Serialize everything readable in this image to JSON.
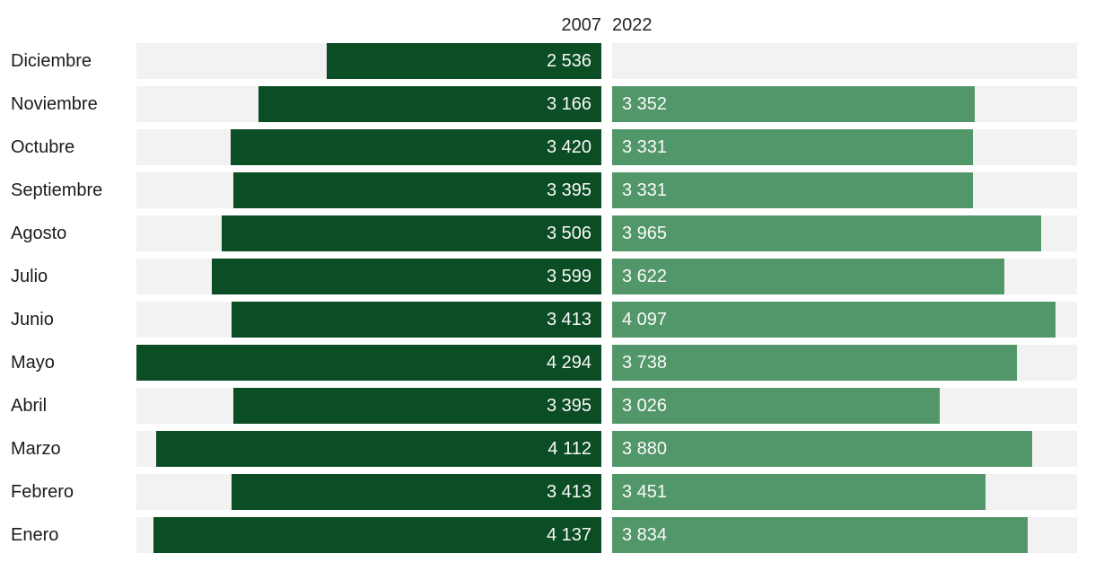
{
  "header": {
    "left_year": "2007",
    "right_year": "2022"
  },
  "colors": {
    "year2007_bar": "#0b4d24",
    "year2022_bar": "#529769",
    "track": "#f2f2f2",
    "month_text": "#1c1c1c",
    "value_text": "#fafafa"
  },
  "chart_data": {
    "type": "bar",
    "orientation": "horizontal-mirrored",
    "title": "",
    "categories": [
      "Diciembre",
      "Noviembre",
      "Octubre",
      "Septiembre",
      "Agosto",
      "Julio",
      "Junio",
      "Mayo",
      "Abril",
      "Marzo",
      "Febrero",
      "Enero"
    ],
    "series": [
      {
        "name": "2007",
        "side": "left",
        "values": [
          2536,
          3166,
          3420,
          3395,
          3506,
          3599,
          3413,
          4294,
          3395,
          4112,
          3413,
          4137
        ],
        "labels": [
          "2 536",
          "3 166",
          "3 420",
          "3 395",
          "3 506",
          "3 599",
          "3 413",
          "4 294",
          "3 395",
          "4 112",
          "3 413",
          "4 137"
        ]
      },
      {
        "name": "2022",
        "side": "right",
        "values": [
          null,
          3352,
          3331,
          3331,
          3965,
          3622,
          4097,
          3738,
          3026,
          3880,
          3451,
          3834
        ],
        "labels": [
          null,
          "3 352",
          "3 331",
          "3 331",
          "3 965",
          "3 622",
          "4 097",
          "3 738",
          "3 026",
          "3 880",
          "3 451",
          "3 834"
        ]
      }
    ],
    "axis_max": 4294,
    "value_labels_position": "inside-bar",
    "grid": false,
    "legend_position": "top"
  }
}
